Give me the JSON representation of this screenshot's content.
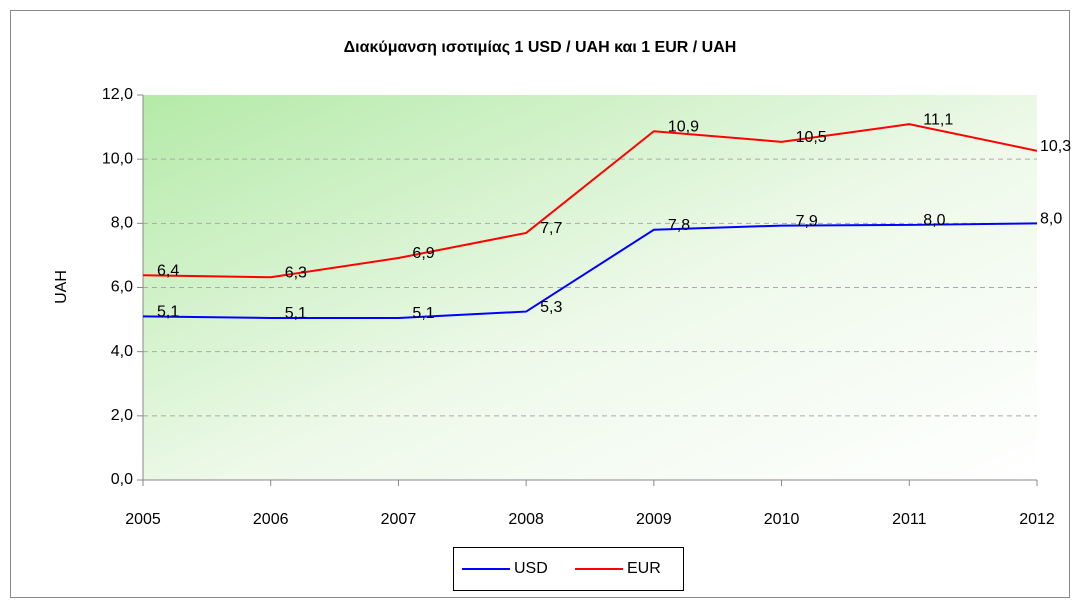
{
  "chart_data": {
    "type": "line",
    "title": "Διακύμανση ισοτιμίας 1 USD / UAH και 1 EUR / UAH",
    "ylabel": "UAH",
    "categories": [
      "2005",
      "2006",
      "2007",
      "2008",
      "2009",
      "2010",
      "2011",
      "2012"
    ],
    "series": [
      {
        "name": "USD",
        "color": "#0000ff",
        "values": [
          5.1,
          5.05,
          5.05,
          5.25,
          7.8,
          7.93,
          7.95,
          8.0
        ],
        "value_labels": [
          "5,1",
          "5,1",
          "5,1",
          "5,3",
          "7,8",
          "7,9",
          "8,0",
          "8,0"
        ]
      },
      {
        "name": "EUR",
        "color": "#ff0000",
        "values": [
          6.38,
          6.32,
          6.92,
          7.7,
          10.87,
          10.54,
          11.09,
          10.26
        ],
        "value_labels": [
          "6,4",
          "6,3",
          "6,9",
          "7,7",
          "10,9",
          "10,5",
          "11,1",
          "10,3"
        ]
      }
    ],
    "ylim": [
      0,
      12
    ],
    "yticks": [
      {
        "value": 0,
        "label": "0,0"
      },
      {
        "value": 2,
        "label": "2,0"
      },
      {
        "value": 4,
        "label": "4,0"
      },
      {
        "value": 6,
        "label": "6,0"
      },
      {
        "value": 8,
        "label": "8,0"
      },
      {
        "value": 10,
        "label": "10,0"
      },
      {
        "value": 12,
        "label": "12,0"
      }
    ],
    "grid": true,
    "legend": "bottom"
  }
}
